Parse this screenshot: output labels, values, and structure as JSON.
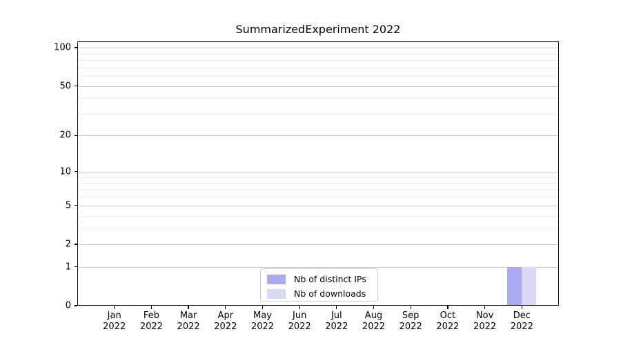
{
  "chart_data": {
    "type": "bar",
    "title": "SummarizedExperiment 2022",
    "categories": [
      {
        "month": "Jan",
        "year": "2022"
      },
      {
        "month": "Feb",
        "year": "2022"
      },
      {
        "month": "Mar",
        "year": "2022"
      },
      {
        "month": "Apr",
        "year": "2022"
      },
      {
        "month": "May",
        "year": "2022"
      },
      {
        "month": "Jun",
        "year": "2022"
      },
      {
        "month": "Jul",
        "year": "2022"
      },
      {
        "month": "Aug",
        "year": "2022"
      },
      {
        "month": "Sep",
        "year": "2022"
      },
      {
        "month": "Oct",
        "year": "2022"
      },
      {
        "month": "Nov",
        "year": "2022"
      },
      {
        "month": "Dec",
        "year": "2022"
      }
    ],
    "series": [
      {
        "name": "Nb of distinct IPs",
        "color": "#a9a9f1",
        "values": [
          0,
          0,
          0,
          0,
          0,
          0,
          0,
          0,
          0,
          0,
          0,
          1
        ]
      },
      {
        "name": "Nb of downloads",
        "color": "#d9d9f7",
        "values": [
          0,
          0,
          0,
          0,
          0,
          0,
          0,
          0,
          0,
          0,
          0,
          1
        ]
      }
    ],
    "yaxis": {
      "scale": "log1p",
      "min": 0,
      "max": 112,
      "ticks": [
        0,
        1,
        2,
        5,
        10,
        20,
        50,
        100
      ],
      "minor_gridlines": [
        3,
        4,
        6,
        7,
        8,
        9,
        30,
        40,
        60,
        70,
        80,
        90
      ]
    },
    "legend_position": "bottom-center-inside",
    "grid": true,
    "colors": {
      "major_grid": "#c9c9c9",
      "minor_grid": "#ececec",
      "spine": "#000000",
      "background": "#ffffff"
    }
  }
}
